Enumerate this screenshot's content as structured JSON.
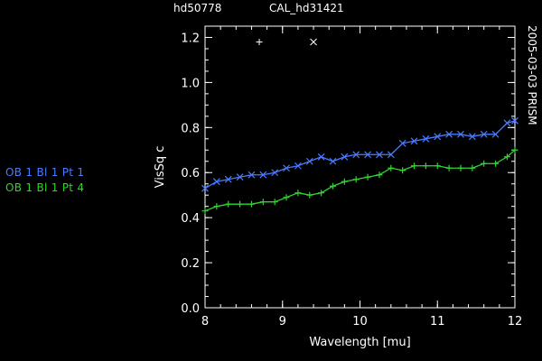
{
  "header": {
    "target": "hd50778",
    "calibrator": "CAL_hd31421"
  },
  "side_label": "2005-03-03 PRISM",
  "legend": [
    {
      "label": "OB 1 Bl 1 Pt 1",
      "color": "#4a7bff"
    },
    {
      "label": "OB 1 Bl 1 Pt 4",
      "color": "#2ed62e"
    }
  ],
  "chart_data": {
    "type": "line",
    "xlabel": "Wavelength [mu]",
    "ylabel": "VisSq c",
    "xlim": [
      8,
      12
    ],
    "ylim": [
      0,
      1.25
    ],
    "xticks": [
      8,
      9,
      10,
      11,
      12
    ],
    "xtick_labels": [
      "8",
      "9",
      "10",
      "11",
      "12"
    ],
    "yticks": [
      0.0,
      0.2,
      0.4,
      0.6,
      0.8,
      1.0,
      1.2
    ],
    "ytick_labels": [
      "0.0",
      "0.2",
      "0.4",
      "0.6",
      "0.8",
      "1.0",
      "1.2"
    ],
    "grid": false,
    "series": [
      {
        "name": "OB 1 Bl 1 Pt 1",
        "color": "#4a7bff",
        "marker": "x",
        "x": [
          8.0,
          8.15,
          8.3,
          8.45,
          8.6,
          8.75,
          8.9,
          9.05,
          9.2,
          9.35,
          9.5,
          9.65,
          9.8,
          9.95,
          10.1,
          10.25,
          10.4,
          10.55,
          10.7,
          10.85,
          11.0,
          11.15,
          11.3,
          11.45,
          11.6,
          11.75,
          11.9,
          12.0
        ],
        "values": [
          0.53,
          0.56,
          0.57,
          0.58,
          0.59,
          0.59,
          0.6,
          0.62,
          0.63,
          0.65,
          0.67,
          0.65,
          0.67,
          0.68,
          0.68,
          0.68,
          0.68,
          0.73,
          0.74,
          0.75,
          0.76,
          0.77,
          0.77,
          0.76,
          0.77,
          0.77,
          0.82,
          0.83
        ]
      },
      {
        "name": "OB 1 Bl 1 Pt 4",
        "color": "#2ed62e",
        "marker": "+",
        "x": [
          8.0,
          8.15,
          8.3,
          8.45,
          8.6,
          8.75,
          8.9,
          9.05,
          9.2,
          9.35,
          9.5,
          9.65,
          9.8,
          9.95,
          10.1,
          10.25,
          10.4,
          10.55,
          10.7,
          10.85,
          11.0,
          11.15,
          11.3,
          11.45,
          11.6,
          11.75,
          11.9,
          12.0
        ],
        "values": [
          0.43,
          0.45,
          0.46,
          0.46,
          0.46,
          0.47,
          0.47,
          0.49,
          0.51,
          0.5,
          0.51,
          0.54,
          0.56,
          0.57,
          0.58,
          0.59,
          0.62,
          0.61,
          0.63,
          0.63,
          0.63,
          0.62,
          0.62,
          0.62,
          0.64,
          0.64,
          0.67,
          0.7
        ]
      }
    ],
    "annotation_markers": [
      {
        "symbol": "+",
        "x": 8.7,
        "y": 1.18
      },
      {
        "symbol": "x",
        "x": 9.4,
        "y": 1.18
      }
    ]
  }
}
